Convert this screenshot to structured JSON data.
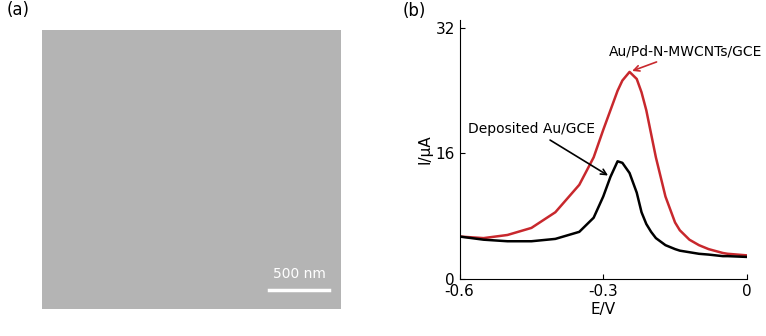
{
  "chart_data": [
    {
      "type": "image",
      "title": "(a)",
      "annotations": [
        "500 nm"
      ],
      "color": "#b4b4b4"
    },
    {
      "type": "line",
      "title": "(b)",
      "x_label": "E/V",
      "y_label": "I/μA",
      "x": [
        -0.6,
        -0.55,
        -0.5,
        -0.45,
        -0.4,
        -0.35,
        -0.32,
        -0.3,
        -0.285,
        -0.27,
        -0.26,
        -0.245,
        -0.23,
        -0.22,
        -0.21,
        -0.2,
        -0.19,
        -0.17,
        -0.15,
        -0.14,
        -0.12,
        -0.1,
        -0.08,
        -0.05,
        -0.04,
        0
      ],
      "series": [
        {
          "name": "Au/Pd-N-MWCNTs/GCE",
          "color": "#c8282d",
          "values": [
            5.4,
            5.2,
            5.6,
            6.5,
            8.5,
            12.0,
            15.5,
            19.0,
            21.5,
            24.0,
            25.3,
            26.4,
            25.5,
            23.8,
            21.5,
            18.5,
            15.5,
            10.5,
            7.2,
            6.2,
            5.0,
            4.3,
            3.8,
            3.3,
            3.2,
            3.0
          ]
        },
        {
          "name": "Deposited Au/GCE",
          "color": "#000000",
          "values": [
            5.4,
            5.0,
            4.8,
            4.8,
            5.1,
            6.0,
            7.8,
            10.5,
            13.0,
            15.0,
            14.8,
            13.5,
            11.0,
            8.5,
            7.0,
            6.0,
            5.2,
            4.3,
            3.8,
            3.6,
            3.4,
            3.2,
            3.1,
            2.9,
            2.9,
            2.8
          ]
        }
      ],
      "xlim": [
        -0.6,
        0
      ],
      "ylim": [
        0,
        33
      ],
      "xticks": [
        -0.6,
        -0.3,
        0
      ],
      "yticks": [
        0,
        16,
        32
      ],
      "grid": false
    }
  ]
}
